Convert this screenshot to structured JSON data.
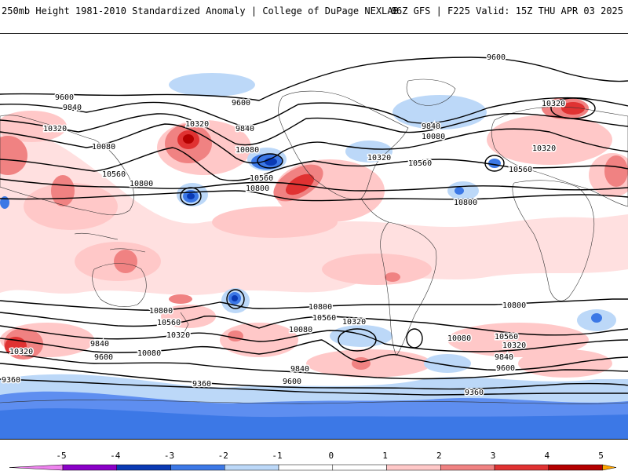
{
  "header": {
    "left": "250mb Height 1981-2010 Standardized Anomaly | College of DuPage NEXLAB",
    "right": "06Z GFS | F225 Valid: 15Z THU APR 03 2025"
  },
  "colors": {
    "-5": "#ee82ee",
    "-4": "#8a00c8",
    "-3": "#0a3ab4",
    "-2": "#3c78e6",
    "-1": "#bcd8f8",
    "1": "#ffc8c8",
    "2": "#f08282",
    "3": "#e03232",
    "4": "#b40000",
    "5": "#ffa500",
    "contour": "#000000"
  },
  "colorbar": {
    "ticks": [
      "-5",
      "-4",
      "-3",
      "-2",
      "-1",
      "0",
      "1",
      "2",
      "3",
      "4",
      "5"
    ]
  },
  "contour_labels": [
    "9600",
    "9840",
    "10080",
    "10320",
    "10560",
    "10800",
    "9360"
  ]
}
